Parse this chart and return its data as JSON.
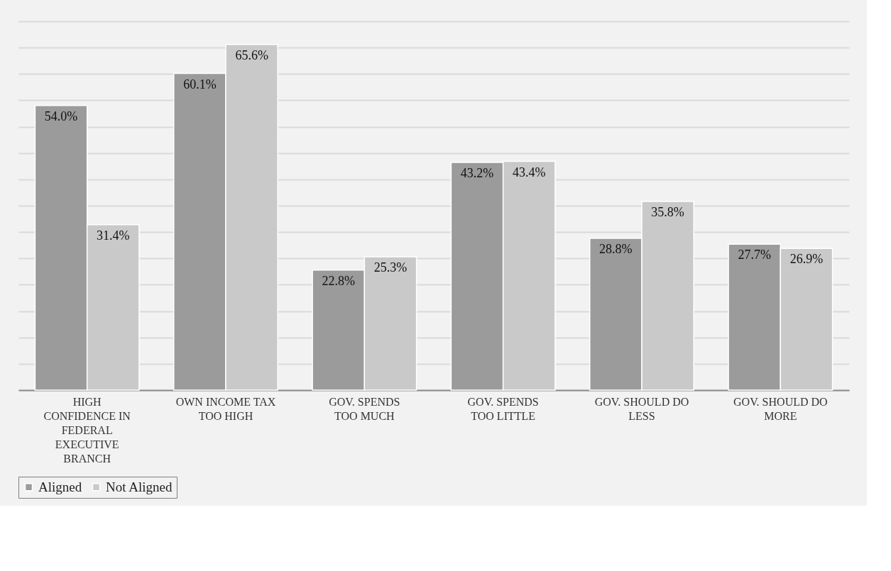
{
  "chart_data": {
    "type": "bar",
    "categories": [
      "HIGH CONFIDENCE IN FEDERAL EXECUTIVE BRANCH",
      "OWN INCOME TAX TOO HIGH",
      "GOV. SPENDS TOO MUCH",
      "GOV. SPENDS TOO LITTLE",
      "GOV. SHOULD DO LESS",
      "GOV. SHOULD DO MORE"
    ],
    "series": [
      {
        "name": "Aligned",
        "color": "#9b9b9b",
        "values": [
          54.0,
          60.1,
          22.8,
          43.2,
          28.8,
          27.7
        ],
        "value_labels": [
          "54.0%",
          "60.1%",
          "22.8%",
          "43.2%",
          "28.8%",
          "27.7%"
        ]
      },
      {
        "name": "Not Aligned",
        "color": "#c9c9c9",
        "values": [
          31.4,
          65.6,
          25.3,
          43.4,
          35.8,
          26.9
        ],
        "value_labels": [
          "31.4%",
          "65.6%",
          "25.3%",
          "43.4%",
          "35.8%",
          "26.9%"
        ]
      }
    ],
    "grid": "y",
    "legend": "bottom",
    "tick_labels": "x"
  }
}
